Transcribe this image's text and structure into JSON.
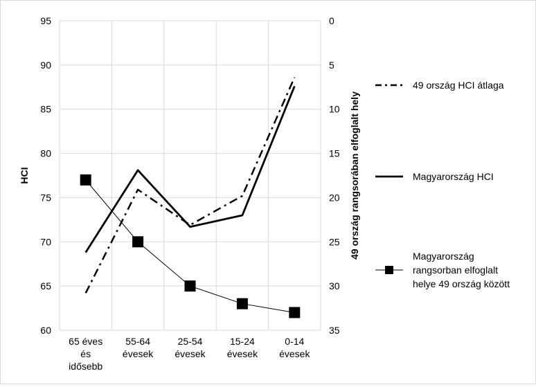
{
  "chart_data": {
    "type": "line",
    "categories": [
      [
        "65 éves",
        "és",
        "idősebb"
      ],
      [
        "55-64",
        "évesek"
      ],
      [
        "25-54",
        "évesek"
      ],
      [
        "15-24",
        "évesek"
      ],
      [
        "0-14",
        "évesek"
      ]
    ],
    "ylabel_left": "HCI",
    "ylabel_right": "49 ország rangsorában elfoglalt hely",
    "ylim_left": [
      60,
      95
    ],
    "yticks_left": [
      60,
      65,
      70,
      75,
      80,
      85,
      90,
      95
    ],
    "ylim_right": [
      35,
      0
    ],
    "yticks_right": [
      35,
      30,
      25,
      20,
      15,
      10,
      5,
      0
    ],
    "grid": true,
    "legend_position": "right",
    "series": [
      {
        "name": "49 ország HCI átlaga",
        "axis": "left",
        "style": "dash-dot",
        "color": "#000000",
        "values": [
          64.2,
          75.9,
          71.9,
          75.2,
          88.6
        ]
      },
      {
        "name": "Magyarország HCI",
        "axis": "left",
        "style": "solid-thick",
        "color": "#000000",
        "values": [
          68.8,
          78.1,
          71.7,
          73.0,
          87.6
        ]
      },
      {
        "name": [
          "Magyarország",
          "rangsorban elfoglalt",
          "helye 49 ország között"
        ],
        "axis": "right",
        "style": "thin-square-markers",
        "color": "#000000",
        "values": [
          18,
          25,
          30,
          32,
          33
        ]
      }
    ]
  }
}
